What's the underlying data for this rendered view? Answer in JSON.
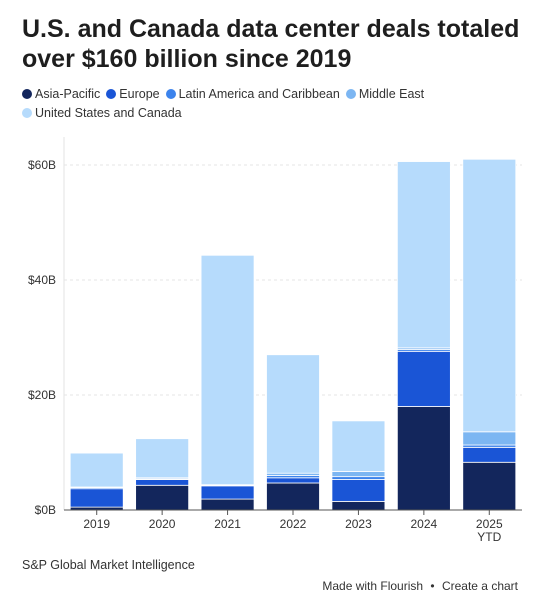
{
  "title": "U.S. and Canada data center deals totaled over $160 billion since 2019",
  "legend": [
    {
      "label": "Asia-Pacific",
      "color": "#13265c"
    },
    {
      "label": "Europe",
      "color": "#1a55d6"
    },
    {
      "label": "Latin America and Caribbean",
      "color": "#3c83ec"
    },
    {
      "label": "Middle East",
      "color": "#7cb6f2"
    },
    {
      "label": "United States and Canada",
      "color": "#b6dbfc"
    }
  ],
  "source": "S&P Global Market Intelligence",
  "footer": {
    "made_with": "Made with Flourish",
    "separator": "•",
    "create": "Create a chart"
  },
  "chart_data": {
    "type": "bar",
    "stacked": true,
    "categories": [
      "2019",
      "2020",
      "2021",
      "2022",
      "2023",
      "2024",
      "2025 YTD"
    ],
    "category_lines": [
      [
        "2019"
      ],
      [
        "2020"
      ],
      [
        "2021"
      ],
      [
        "2022"
      ],
      [
        "2023"
      ],
      [
        "2024"
      ],
      [
        "2025",
        "YTD"
      ]
    ],
    "series": [
      {
        "name": "Asia-Pacific",
        "color": "#13265c",
        "values": [
          0.5,
          4.3,
          1.9,
          4.7,
          1.5,
          18.0,
          8.3
        ]
      },
      {
        "name": "Europe",
        "color": "#1a55d6",
        "values": [
          3.2,
          1.0,
          2.3,
          0.9,
          3.8,
          9.6,
          2.6
        ]
      },
      {
        "name": "Latin America and Caribbean",
        "color": "#3c83ec",
        "values": [
          0.2,
          0.1,
          0.1,
          0.4,
          0.5,
          0.3,
          0.4
        ]
      },
      {
        "name": "Middle East",
        "color": "#7cb6f2",
        "values": [
          0.1,
          0.2,
          0.1,
          0.4,
          0.9,
          0.3,
          2.3
        ]
      },
      {
        "name": "United States and Canada",
        "color": "#b6dbfc",
        "values": [
          5.9,
          6.8,
          39.9,
          20.6,
          8.8,
          32.4,
          47.4
        ]
      }
    ],
    "ylim": [
      0,
      60
    ],
    "yticks": [
      0,
      20,
      40,
      60
    ],
    "ytick_labels": [
      "$0B",
      "$20B",
      "$40B",
      "$60B"
    ],
    "grid": true,
    "legend_position": "top-left"
  }
}
